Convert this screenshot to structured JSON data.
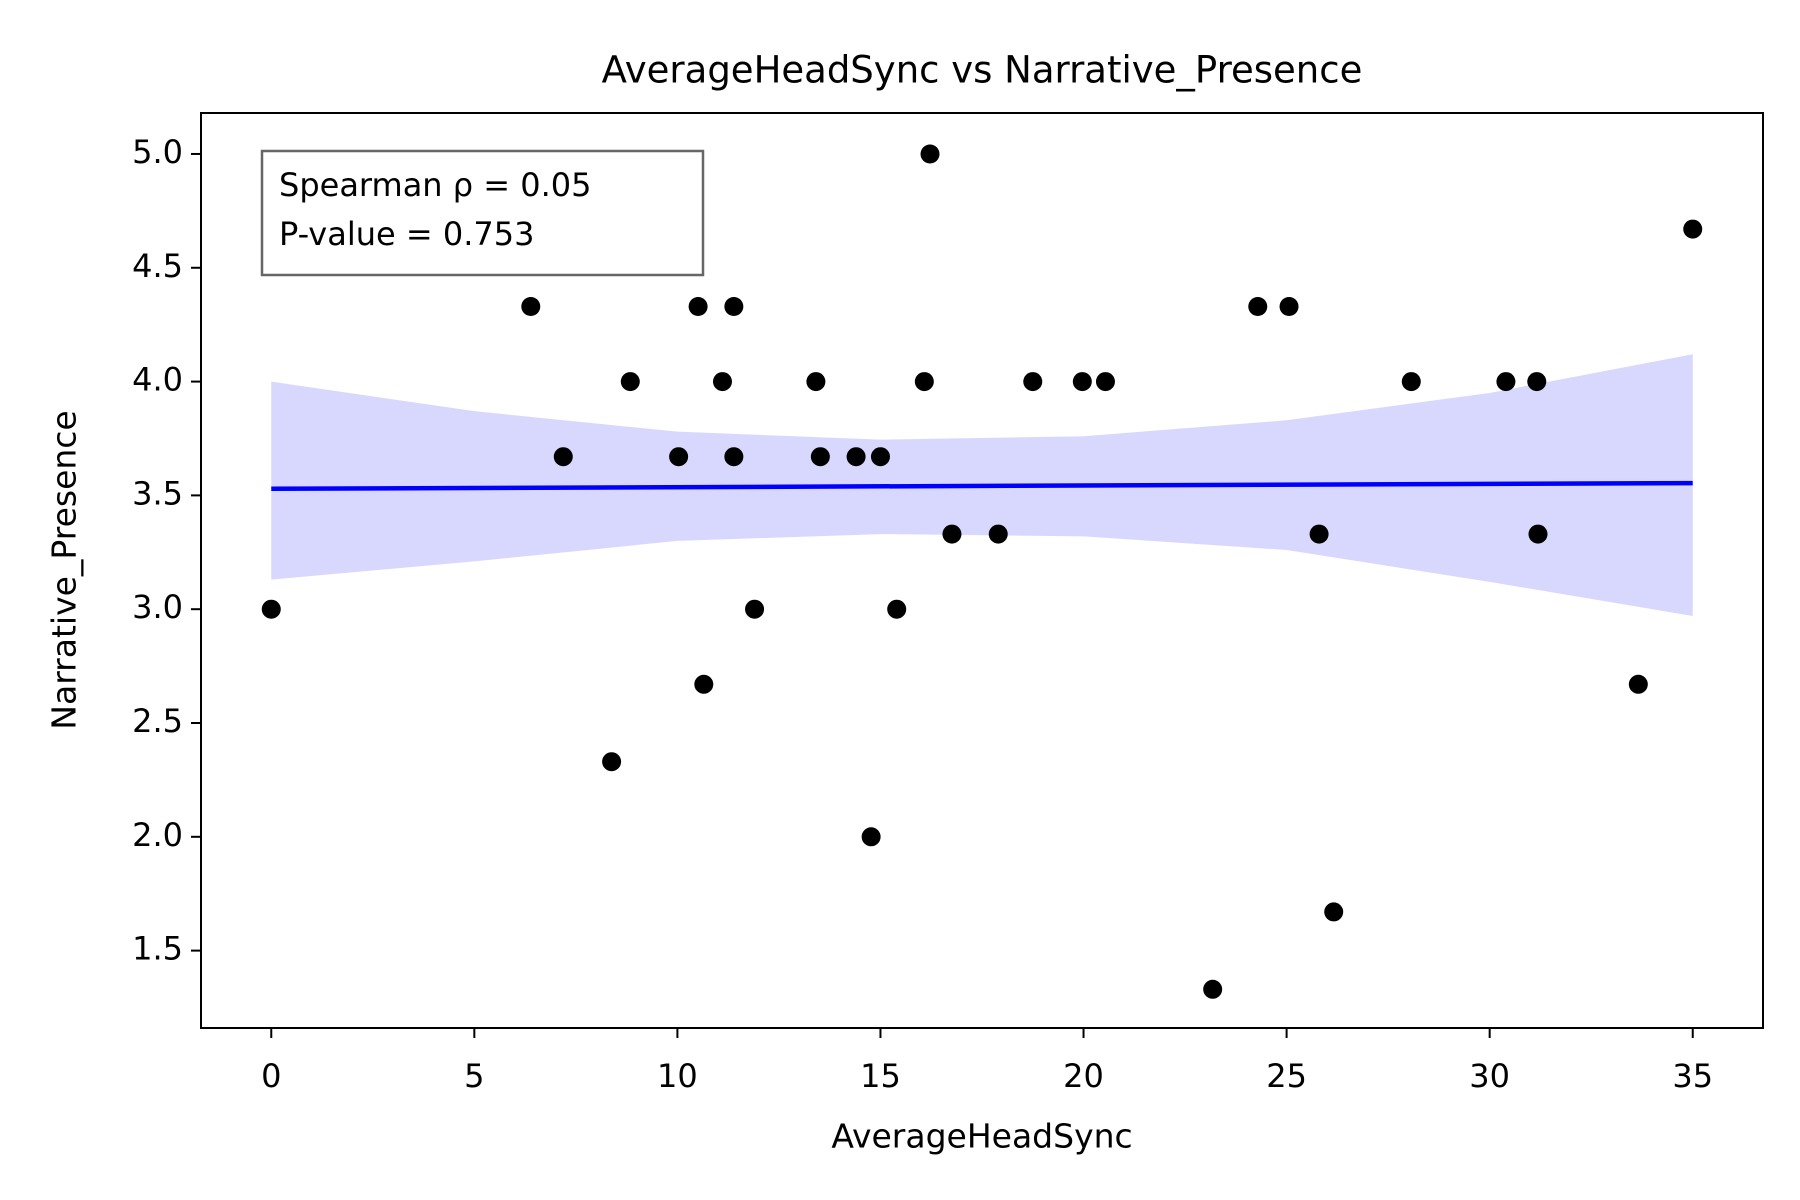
{
  "chart_data": {
    "type": "scatter",
    "title": "AverageHeadSync vs Narrative_Presence",
    "x_label": "AverageHeadSync",
    "y_label": "Narrative_Presence",
    "annotation": [
      "Spearman ρ = 0.05",
      "P-value = 0.753"
    ],
    "xlim": [
      -1.73,
      36.73
    ],
    "ylim": [
      1.16,
      5.18
    ],
    "xticks": [
      0,
      5,
      10,
      15,
      20,
      25,
      30,
      35
    ],
    "yticks": [
      1.5,
      {
        "value": 2,
        "label": "2.0"
      },
      2.5,
      {
        "value": 3,
        "label": "3.0"
      },
      3.5,
      {
        "value": 4,
        "label": "4.0"
      },
      4.5,
      {
        "value": 5,
        "label": "5.0"
      }
    ],
    "color": "#000000",
    "x": [
      0,
      6.39,
      7.19,
      8.38,
      8.84,
      10.03,
      10.51,
      10.65,
      11.11,
      11.39,
      11.39,
      11.9,
      13.41,
      13.52,
      14.4,
      14.77,
      15.0,
      15.4,
      16.08,
      16.22,
      16.76,
      17.9,
      18.75,
      19.97,
      20.54,
      23.18,
      24.29,
      25.06,
      25.8,
      26.16,
      28.07,
      30.4,
      31.16,
      31.19,
      33.66,
      35.0
    ],
    "values": [
      3.0,
      4.33,
      3.67,
      2.33,
      4.0,
      3.67,
      4.33,
      2.67,
      4.0,
      4.33,
      3.67,
      3.0,
      4.0,
      3.67,
      3.67,
      2.0,
      3.67,
      3.0,
      4.0,
      5.0,
      3.33,
      3.33,
      4.0,
      4.0,
      4.0,
      1.33,
      4.33,
      4.33,
      3.33,
      1.67,
      4.0,
      4.0,
      4.0,
      3.33,
      2.67,
      4.67
    ],
    "fit": {
      "x": [
        0,
        35
      ],
      "values": [
        3.529,
        3.554
      ],
      "color": "#0000ff"
    },
    "band": {
      "x": [
        0,
        5,
        10,
        15,
        20,
        25,
        30,
        35
      ],
      "lower": [
        3.13,
        3.21,
        3.3,
        3.33,
        3.32,
        3.26,
        3.12,
        2.97
      ],
      "upper": [
        4.0,
        3.87,
        3.78,
        3.745,
        3.76,
        3.83,
        3.95,
        4.12
      ],
      "color": "#d8d8ff"
    }
  }
}
